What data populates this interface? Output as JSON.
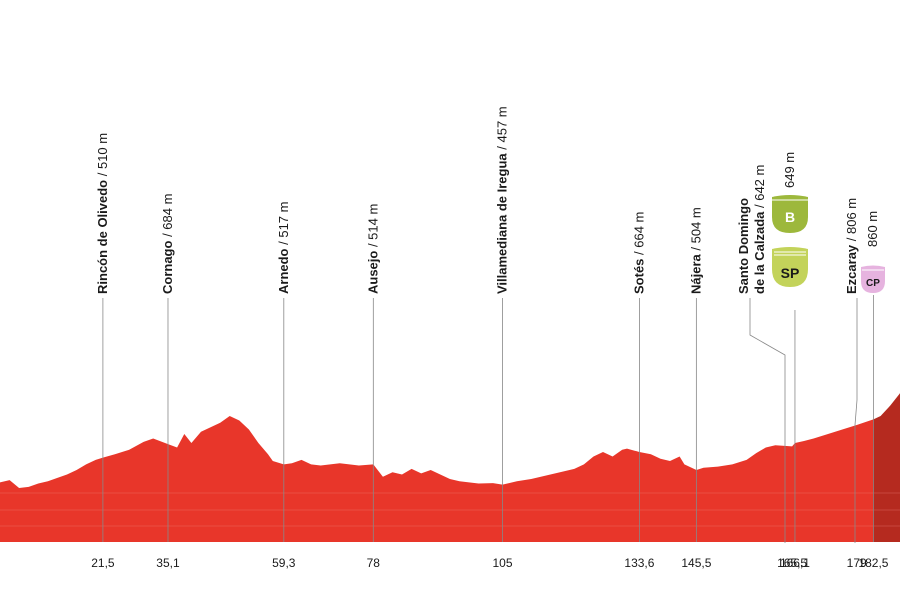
{
  "profile": {
    "color_main": "#e8362a",
    "color_climb": "#b52a1f",
    "color_band_line": "#f08a80",
    "color_sprint": "#b5c84a",
    "color_bonus": "#9db83c",
    "color_cp": "#e6b3df",
    "elevation_km": [
      0,
      2,
      4,
      6,
      8,
      10,
      12,
      14,
      16,
      18,
      20,
      21.5,
      24,
      27,
      30,
      32,
      35.1,
      37,
      38.5,
      40,
      42,
      44,
      46,
      48,
      50,
      52,
      54,
      56,
      57,
      59.3,
      61,
      63,
      65,
      67,
      69,
      71,
      73,
      75,
      78,
      80,
      82,
      84,
      86,
      88,
      90,
      92,
      94,
      96,
      98,
      100,
      103,
      105,
      108,
      111,
      114,
      117,
      120,
      122,
      124,
      126,
      128,
      130,
      131,
      133.6,
      136,
      138,
      140,
      142,
      143,
      145.5,
      147,
      150,
      153,
      156,
      158,
      160,
      162,
      165.5,
      166.1,
      168,
      170,
      173,
      176,
      179,
      182.5,
      184,
      186,
      188
    ],
    "elevation_m": [
      465,
      475,
      440,
      445,
      460,
      470,
      485,
      500,
      520,
      545,
      565,
      575,
      590,
      610,
      645,
      660,
      635,
      620,
      680,
      640,
      690,
      710,
      730,
      760,
      740,
      700,
      640,
      590,
      560,
      545,
      550,
      565,
      545,
      540,
      545,
      550,
      545,
      540,
      545,
      490,
      510,
      500,
      525,
      505,
      520,
      500,
      480,
      470,
      465,
      460,
      462,
      455,
      470,
      480,
      495,
      510,
      525,
      545,
      580,
      600,
      580,
      610,
      615,
      600,
      590,
      570,
      560,
      580,
      545,
      520,
      530,
      535,
      545,
      565,
      595,
      620,
      630,
      625,
      640,
      649,
      660,
      680,
      700,
      720,
      745,
      760,
      806,
      860,
      940,
      1000
    ]
  },
  "markers": [
    {
      "km": 21.5,
      "km_label": "21,5",
      "name": "Rincón de Olivedo",
      "alt": "/ 510 m"
    },
    {
      "km": 35.1,
      "km_label": "35,1",
      "name": "Cornago",
      "alt": "/ 684 m"
    },
    {
      "km": 59.3,
      "km_label": "59,3",
      "name": "Arnedo",
      "alt": "/ 517 m"
    },
    {
      "km": 78,
      "km_label": "78",
      "name": "Ausejo",
      "alt": "/ 514 m"
    },
    {
      "km": 105,
      "km_label": "105",
      "name": "Villamediana de Iregua",
      "alt": "/ 457 m"
    },
    {
      "km": 133.6,
      "km_label": "133,6",
      "name": "Sotés",
      "alt": "/ 664 m"
    },
    {
      "km": 145.5,
      "km_label": "145,5",
      "name": "Nájera",
      "alt": "/ 504 m"
    },
    {
      "km": 165.5,
      "km_label": "165,5",
      "name": "Santo Domingo",
      "name2": "de la Calzada",
      "alt": "/ 642 m"
    },
    {
      "km": 166.1,
      "km_label": "166,1",
      "name": "",
      "alt": "649 m"
    },
    {
      "km": 179,
      "km_label": "179",
      "name": "Ezcaray",
      "alt": "/ 806 m"
    },
    {
      "km": 182.5,
      "km_label": "182,5",
      "name": "",
      "alt": "860 m"
    }
  ],
  "badges": {
    "bonus": "B",
    "sprint": "SP",
    "cp": "CP"
  }
}
